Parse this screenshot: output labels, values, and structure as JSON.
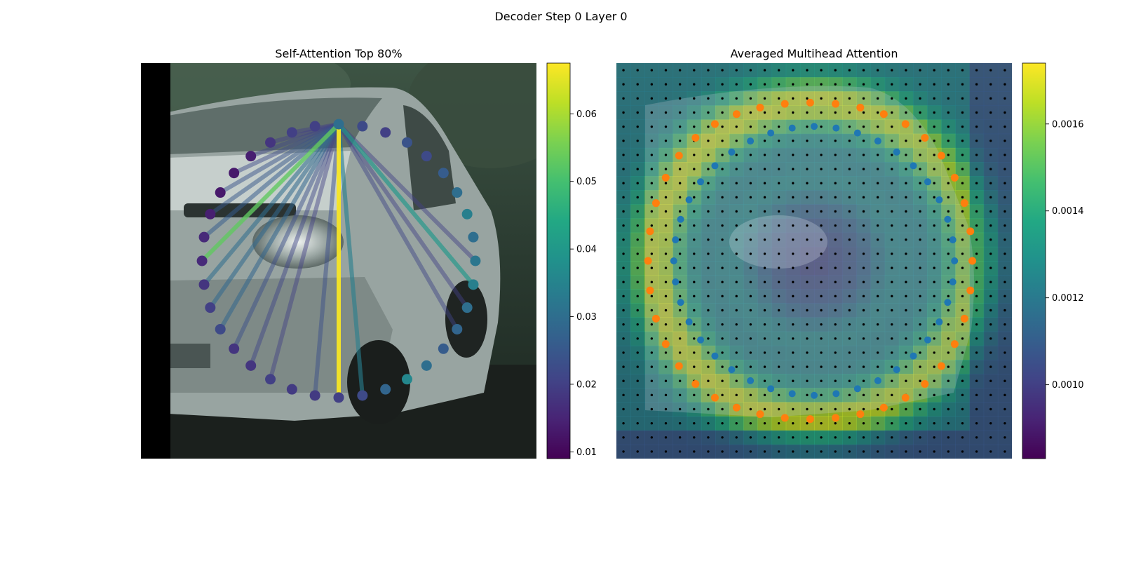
{
  "figure": {
    "suptitle": "Decoder Step 0 Layer 0"
  },
  "colors": {
    "viridis": [
      "#440154",
      "#482475",
      "#414487",
      "#355f8d",
      "#2a788e",
      "#21918c",
      "#22a884",
      "#44bf70",
      "#7ad151",
      "#bddf26",
      "#fde725"
    ],
    "contour_ring": "#1f77b4",
    "box_ring": "#ff7f0e",
    "grid_dot": "#000000",
    "van_body": "#a8b2b0",
    "background_scene": "#2c3a30"
  },
  "chart_data": [
    {
      "type": "scatter",
      "title": "Self-Attention Top 80%",
      "description_image": "camera crop of a white van with a ring of query points; lines from the top query point to its most-attended points",
      "ring_points": {
        "center": [
          0.5,
          0.5
        ],
        "count": 36,
        "values": [
          0.03,
          0.022,
          0.02,
          0.024,
          0.022,
          0.026,
          0.03,
          0.034,
          0.03,
          0.032,
          0.034,
          0.03,
          0.028,
          0.026,
          0.03,
          0.036,
          0.028,
          0.022,
          0.02,
          0.019,
          0.019,
          0.02,
          0.018,
          0.018,
          0.022,
          0.02,
          0.018,
          0.016,
          0.016,
          0.014,
          0.013,
          0.013,
          0.014,
          0.018,
          0.02,
          0.02
        ]
      },
      "attention_lines": {
        "source_index": 0,
        "targets": [
          {
            "index": 18,
            "weight": 0.067
          },
          {
            "index": 27,
            "weight": 0.053
          },
          {
            "index": 10,
            "weight": 0.04
          },
          {
            "index": 17,
            "weight": 0.034
          },
          {
            "index": 26,
            "weight": 0.03
          },
          {
            "index": 25,
            "weight": 0.029
          },
          {
            "index": 24,
            "weight": 0.028
          },
          {
            "index": 28,
            "weight": 0.026
          },
          {
            "index": 29,
            "weight": 0.025
          },
          {
            "index": 30,
            "weight": 0.024
          },
          {
            "index": 23,
            "weight": 0.023
          },
          {
            "index": 19,
            "weight": 0.023
          },
          {
            "index": 31,
            "weight": 0.022
          },
          {
            "index": 22,
            "weight": 0.021
          },
          {
            "index": 32,
            "weight": 0.021
          },
          {
            "index": 12,
            "weight": 0.021
          },
          {
            "index": 11,
            "weight": 0.02
          },
          {
            "index": 9,
            "weight": 0.02
          },
          {
            "index": 33,
            "weight": 0.02
          },
          {
            "index": 21,
            "weight": 0.02
          },
          {
            "index": 34,
            "weight": 0.02
          }
        ]
      },
      "colorbar": {
        "range": [
          0.009,
          0.0675
        ],
        "ticks": [
          0.01,
          0.02,
          0.03,
          0.04,
          0.05,
          0.06
        ],
        "tick_labels": [
          "0.01",
          "0.02",
          "0.03",
          "0.04",
          "0.05",
          "0.06"
        ]
      }
    },
    {
      "type": "heatmap",
      "title": "Averaged Multihead Attention",
      "grid_size": 28,
      "colorbar": {
        "range": [
          0.00083,
          0.00174
        ],
        "ticks": [
          0.001,
          0.0012,
          0.0014,
          0.0016
        ],
        "tick_labels": [
          "0.0010",
          "0.0012",
          "0.0014",
          "0.0016"
        ]
      }
    }
  ]
}
